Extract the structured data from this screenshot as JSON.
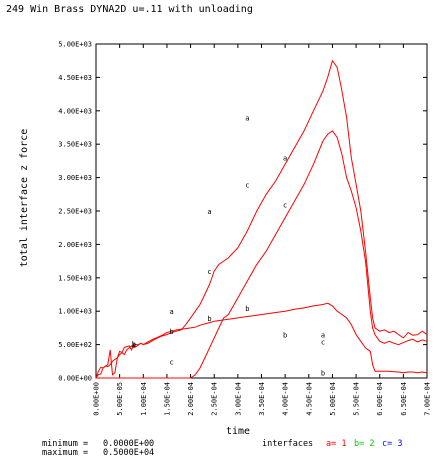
{
  "chart_data": {
    "type": "line",
    "title": "249 Win Brass DYNA2D u=.11 with unloading",
    "xlabel": "time",
    "ylabel": "total interface z force",
    "xlim": [
      0,
      0.0007
    ],
    "ylim": [
      0,
      5000
    ],
    "xticks": [
      "0.00E+00",
      "5.00E-05",
      "1.00E-04",
      "1.50E-04",
      "2.00E-04",
      "2.50E-04",
      "3.00E-04",
      "3.50E-04",
      "4.00E-04",
      "4.50E-04",
      "5.00E-04",
      "5.50E-04",
      "6.00E-04",
      "6.50E-04",
      "7.00E-04"
    ],
    "yticks": [
      "0.00E+00",
      "5.00E+02",
      "1.00E+03",
      "1.50E+03",
      "2.00E+03",
      "2.50E+03",
      "3.00E+03",
      "3.50E+03",
      "4.00E+03",
      "4.50E+03",
      "5.00E+03"
    ],
    "grid": false,
    "legend_title": "interfaces",
    "series": [
      {
        "name": "a",
        "legend": "a= 1",
        "color": "#ff0000",
        "x": [
          0,
          5e-06,
          1e-05,
          1.5e-05,
          2e-05,
          2.5e-05,
          3e-05,
          3.5e-05,
          4e-05,
          4.5e-05,
          5e-05,
          5.5e-05,
          6e-05,
          6.5e-05,
          7e-05,
          7.5e-05,
          8e-05,
          8.5e-05,
          9e-05,
          9.5e-05,
          0.0001,
          0.00011,
          0.00012,
          0.00013,
          0.00014,
          0.00015,
          0.00016,
          0.00017,
          0.00018,
          0.00019,
          0.0002,
          0.00021,
          0.00022,
          0.00023,
          0.00024,
          0.00025,
          0.00026,
          0.00027,
          0.00028,
          0.0003,
          0.00032,
          0.00034,
          0.00036,
          0.00038,
          0.0004,
          0.00042,
          0.00044,
          0.00046,
          0.00048,
          0.00049,
          0.0005,
          0.00051,
          0.00052,
          0.00053,
          0.00054,
          0.00055,
          0.00056,
          0.00057,
          0.00058,
          0.000585,
          0.00059,
          0.0006,
          0.00061,
          0.00062,
          0.00063,
          0.00064,
          0.00065,
          0.00066,
          0.00067,
          0.00068,
          0.00069,
          0.0007
        ],
        "y": [
          0,
          50,
          60,
          150,
          180,
          170,
          200,
          250,
          280,
          300,
          350,
          380,
          350,
          420,
          450,
          480,
          460,
          470,
          500,
          520,
          500,
          520,
          560,
          600,
          630,
          650,
          680,
          700,
          720,
          800,
          900,
          1000,
          1100,
          1250,
          1400,
          1600,
          1700,
          1750,
          1800,
          1950,
          2200,
          2500,
          2750,
          2950,
          3200,
          3450,
          3700,
          4000,
          4300,
          4500,
          4750,
          4650,
          4300,
          3900,
          3300,
          2900,
          2500,
          1900,
          1200,
          900,
          750,
          700,
          720,
          680,
          700,
          650,
          600,
          680,
          640,
          650,
          700,
          650
        ]
      },
      {
        "name": "b",
        "legend": "b= 2",
        "color": "#00cc00",
        "x": [
          0,
          5e-06,
          1e-05,
          1.5e-05,
          2e-05,
          2.5e-05,
          3e-05,
          3.5e-05,
          4e-05,
          4.5e-05,
          5e-05,
          5.5e-05,
          6e-05,
          6.5e-05,
          7e-05,
          7.5e-05,
          8e-05,
          8.5e-05,
          9e-05,
          9.5e-05,
          0.0001,
          0.00011,
          0.00012,
          0.00013,
          0.00014,
          0.00015,
          0.00016,
          0.00017,
          0.00018,
          0.00019,
          0.0002,
          0.00021,
          0.00022,
          0.00023,
          0.00024,
          0.00025,
          0.00026,
          0.00027,
          0.00028,
          0.0003,
          0.00032,
          0.00034,
          0.00036,
          0.00038,
          0.0004,
          0.00042,
          0.00044,
          0.00046,
          0.00048,
          0.00049,
          0.0005,
          0.00051,
          0.00052,
          0.00053,
          0.00054,
          0.00055,
          0.00056,
          0.00057,
          0.00058,
          0.000585,
          0.00059,
          0.0006,
          0.00061,
          0.00062,
          0.00063,
          0.00064,
          0.00065,
          0.00066,
          0.00067,
          0.00068,
          0.00069,
          0.0007
        ],
        "y": [
          0,
          100,
          160,
          150,
          180,
          200,
          420,
          50,
          80,
          300,
          400,
          380,
          460,
          470,
          480,
          420,
          500,
          500,
          500,
          520,
          500,
          540,
          580,
          610,
          640,
          680,
          700,
          720,
          730,
          740,
          750,
          760,
          790,
          810,
          830,
          850,
          860,
          870,
          880,
          900,
          920,
          940,
          960,
          980,
          1000,
          1030,
          1050,
          1080,
          1100,
          1120,
          1080,
          1000,
          950,
          900,
          800,
          650,
          550,
          450,
          400,
          200,
          100,
          100,
          100,
          100,
          95,
          90,
          80,
          90,
          90,
          80,
          90,
          80
        ]
      },
      {
        "name": "c",
        "legend": "c= 3",
        "color": "#0000ff",
        "x": [
          0,
          5e-06,
          1e-05,
          1.5e-05,
          2e-05,
          2.5e-05,
          3e-05,
          3.5e-05,
          4e-05,
          4.5e-05,
          5e-05,
          5.5e-05,
          6e-05,
          6.5e-05,
          7e-05,
          7.5e-05,
          8e-05,
          8.5e-05,
          9e-05,
          9.5e-05,
          0.0001,
          0.00011,
          0.00012,
          0.00013,
          0.00014,
          0.00015,
          0.00016,
          0.00017,
          0.00018,
          0.00019,
          0.0002,
          0.00021,
          0.00022,
          0.00023,
          0.00024,
          0.00025,
          0.00026,
          0.00027,
          0.00028,
          0.0003,
          0.00032,
          0.00034,
          0.00036,
          0.00038,
          0.0004,
          0.00042,
          0.00044,
          0.00046,
          0.00048,
          0.00049,
          0.0005,
          0.00051,
          0.00052,
          0.00053,
          0.00054,
          0.00055,
          0.00056,
          0.00057,
          0.00058,
          0.000585,
          0.00059,
          0.0006,
          0.00061,
          0.00062,
          0.00063,
          0.00064,
          0.00065,
          0.00066,
          0.00067,
          0.00068,
          0.00069,
          0.0007
        ],
        "y": [
          0,
          0,
          0,
          0,
          0,
          0,
          0,
          0,
          0,
          0,
          0,
          0,
          0,
          0,
          0,
          0,
          0,
          0,
          0,
          0,
          0,
          0,
          0,
          0,
          0,
          0,
          0,
          0,
          0,
          0,
          0,
          50,
          150,
          300,
          450,
          600,
          750,
          900,
          950,
          1200,
          1450,
          1700,
          1900,
          2150,
          2400,
          2650,
          2900,
          3200,
          3550,
          3650,
          3700,
          3600,
          3350,
          3000,
          2800,
          2550,
          2200,
          1750,
          1000,
          750,
          650,
          550,
          520,
          550,
          520,
          500,
          530,
          560,
          580,
          540,
          570,
          550
        ]
      }
    ],
    "markers": [
      {
        "series": "a",
        "x": 8e-05,
        "y": 500
      },
      {
        "series": "a",
        "x": 0.00016,
        "y": 1000
      },
      {
        "series": "a",
        "x": 0.00024,
        "y": 2500
      },
      {
        "series": "a",
        "x": 0.00032,
        "y": 3900
      },
      {
        "series": "a",
        "x": 0.0004,
        "y": 3300
      },
      {
        "series": "a",
        "x": 0.00048,
        "y": 650
      },
      {
        "series": "b",
        "x": 8e-05,
        "y": 520
      },
      {
        "series": "b",
        "x": 0.00016,
        "y": 700
      },
      {
        "series": "b",
        "x": 0.00024,
        "y": 900
      },
      {
        "series": "b",
        "x": 0.00032,
        "y": 1050
      },
      {
        "series": "b",
        "x": 0.0004,
        "y": 650
      },
      {
        "series": "b",
        "x": 0.00048,
        "y": 80
      },
      {
        "series": "c",
        "x": 8e-05,
        "y": 500
      },
      {
        "series": "c",
        "x": 0.00016,
        "y": 250
      },
      {
        "series": "c",
        "x": 0.00024,
        "y": 1600
      },
      {
        "series": "c",
        "x": 0.00032,
        "y": 2900
      },
      {
        "series": "c",
        "x": 0.0004,
        "y": 2600
      },
      {
        "series": "c",
        "x": 0.00048,
        "y": 550
      }
    ]
  },
  "footer": {
    "minimum_label": "minimum =",
    "minimum_value": "0.0000E+00",
    "maximum_label": "maximum =",
    "maximum_value": "0.5000E+04",
    "legend_title": "interfaces",
    "legend_items": [
      {
        "text": "a= 1",
        "color": "#ff0000"
      },
      {
        "text": "b= 2",
        "color": "#00cc00"
      },
      {
        "text": "c= 3",
        "color": "#0000ff"
      }
    ]
  }
}
